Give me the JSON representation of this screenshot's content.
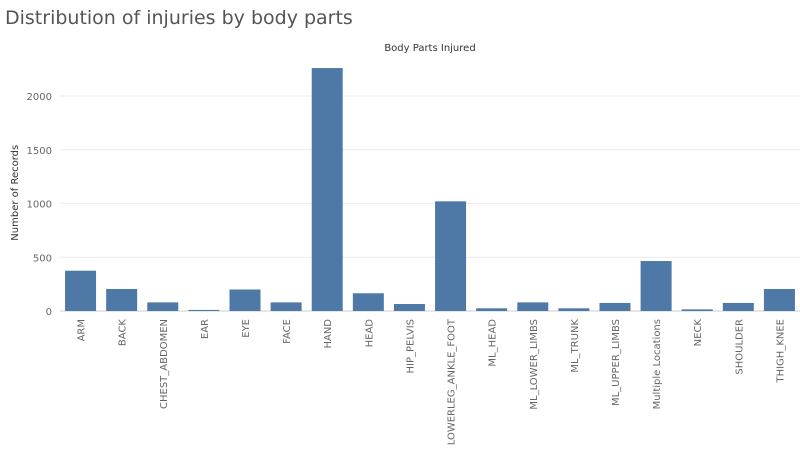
{
  "title": "Distribution of injuries by body parts",
  "colors": {
    "bar": "#4e79a7",
    "grid": "#ececec",
    "axis": "#cccccc"
  },
  "chart_data": {
    "type": "bar",
    "column_header": "Body Parts Injured",
    "ylabel": "Number of Records",
    "xlabel": "",
    "ylim": [
      0,
      2300
    ],
    "yticks": [
      0,
      500,
      1000,
      1500,
      2000
    ],
    "grid": true,
    "categories": [
      "ARM",
      "BACK",
      "CHEST_ABDOMEN",
      "EAR",
      "EYE",
      "FACE",
      "HAND",
      "HEAD",
      "HIP_PELVIS",
      "LOWERLEG_ANKLE_FOOT",
      "ML_HEAD",
      "ML_LOWER_LIMBS",
      "ML_TRUNK",
      "ML_UPPER_LIMBS",
      "Multiple Locations",
      "NECK",
      "SHOULDER",
      "THIGH_KNEE"
    ],
    "values": [
      375,
      205,
      80,
      10,
      200,
      80,
      2260,
      165,
      65,
      1020,
      25,
      80,
      25,
      75,
      465,
      15,
      75,
      205
    ]
  }
}
